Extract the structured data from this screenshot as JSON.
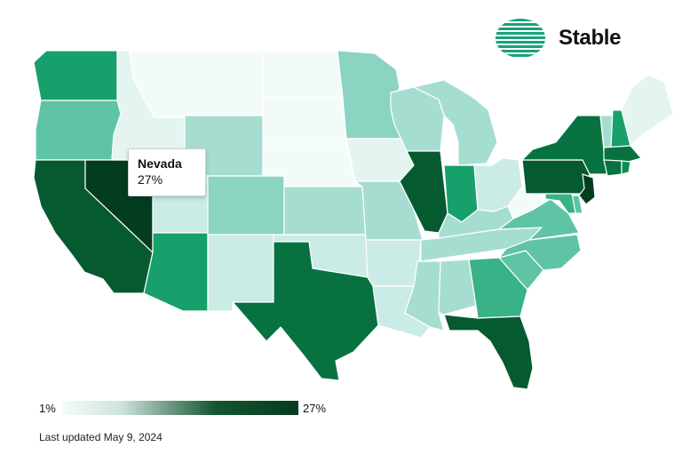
{
  "brand": {
    "name": "Stable",
    "logo_icon": "striped-globe-icon",
    "logo_color": "#16a37a"
  },
  "tooltip": {
    "state": "Nevada",
    "value": "27%"
  },
  "legend": {
    "min_label": "1%",
    "max_label": "27%",
    "min_color": "#f4fbf9",
    "max_color": "#063b1f"
  },
  "footer": {
    "updated": "Last updated May 9, 2024"
  },
  "palette": {
    "c1": "#f3fbf9",
    "c2": "#e4f4f0",
    "c3": "#cbebe6",
    "c4": "#a6ddd1",
    "c5": "#8bd4c2",
    "c6": "#5fc3a6",
    "c7": "#38b286",
    "c8": "#17a06c",
    "c9": "#0f8a55",
    "c10": "#07723f",
    "c11": "#055a30",
    "c12": "#033d1f"
  },
  "states": [
    {
      "name": "Washington",
      "level": "c8"
    },
    {
      "name": "Oregon",
      "level": "c6"
    },
    {
      "name": "California",
      "level": "c11"
    },
    {
      "name": "Nevada",
      "level": "c12"
    },
    {
      "name": "Idaho",
      "level": "c2"
    },
    {
      "name": "Montana",
      "level": "c1"
    },
    {
      "name": "Wyoming",
      "level": "c4"
    },
    {
      "name": "Utah",
      "level": "c3"
    },
    {
      "name": "Arizona",
      "level": "c8"
    },
    {
      "name": "Colorado",
      "level": "c5"
    },
    {
      "name": "New Mexico",
      "level": "c3"
    },
    {
      "name": "North Dakota",
      "level": "c1"
    },
    {
      "name": "South Dakota",
      "level": "c1"
    },
    {
      "name": "Nebraska",
      "level": "c1"
    },
    {
      "name": "Kansas",
      "level": "c4"
    },
    {
      "name": "Oklahoma",
      "level": "c3"
    },
    {
      "name": "Texas",
      "level": "c10"
    },
    {
      "name": "Minnesota",
      "level": "c5"
    },
    {
      "name": "Iowa",
      "level": "c2"
    },
    {
      "name": "Missouri",
      "level": "c4"
    },
    {
      "name": "Arkansas",
      "level": "c3"
    },
    {
      "name": "Louisiana",
      "level": "c3"
    },
    {
      "name": "Wisconsin",
      "level": "c4"
    },
    {
      "name": "Illinois",
      "level": "c11"
    },
    {
      "name": "Michigan",
      "level": "c4"
    },
    {
      "name": "Indiana",
      "level": "c8"
    },
    {
      "name": "Ohio",
      "level": "c3"
    },
    {
      "name": "Kentucky",
      "level": "c4"
    },
    {
      "name": "Tennessee",
      "level": "c4"
    },
    {
      "name": "Mississippi",
      "level": "c4"
    },
    {
      "name": "Alabama",
      "level": "c4"
    },
    {
      "name": "Georgia",
      "level": "c7"
    },
    {
      "name": "Florida",
      "level": "c11"
    },
    {
      "name": "South Carolina",
      "level": "c6"
    },
    {
      "name": "North Carolina",
      "level": "c6"
    },
    {
      "name": "Virginia",
      "level": "c6"
    },
    {
      "name": "West Virginia",
      "level": "c1"
    },
    {
      "name": "Pennsylvania",
      "level": "c11"
    },
    {
      "name": "New York",
      "level": "c10"
    },
    {
      "name": "Vermont",
      "level": "c4"
    },
    {
      "name": "New Hampshire",
      "level": "c8"
    },
    {
      "name": "Maine",
      "level": "c2"
    },
    {
      "name": "Massachusetts",
      "level": "c10"
    },
    {
      "name": "Connecticut",
      "level": "c10"
    },
    {
      "name": "Rhode Island",
      "level": "c9"
    },
    {
      "name": "New Jersey",
      "level": "c12"
    },
    {
      "name": "Delaware",
      "level": "c6"
    },
    {
      "name": "Maryland",
      "level": "c7"
    }
  ]
}
